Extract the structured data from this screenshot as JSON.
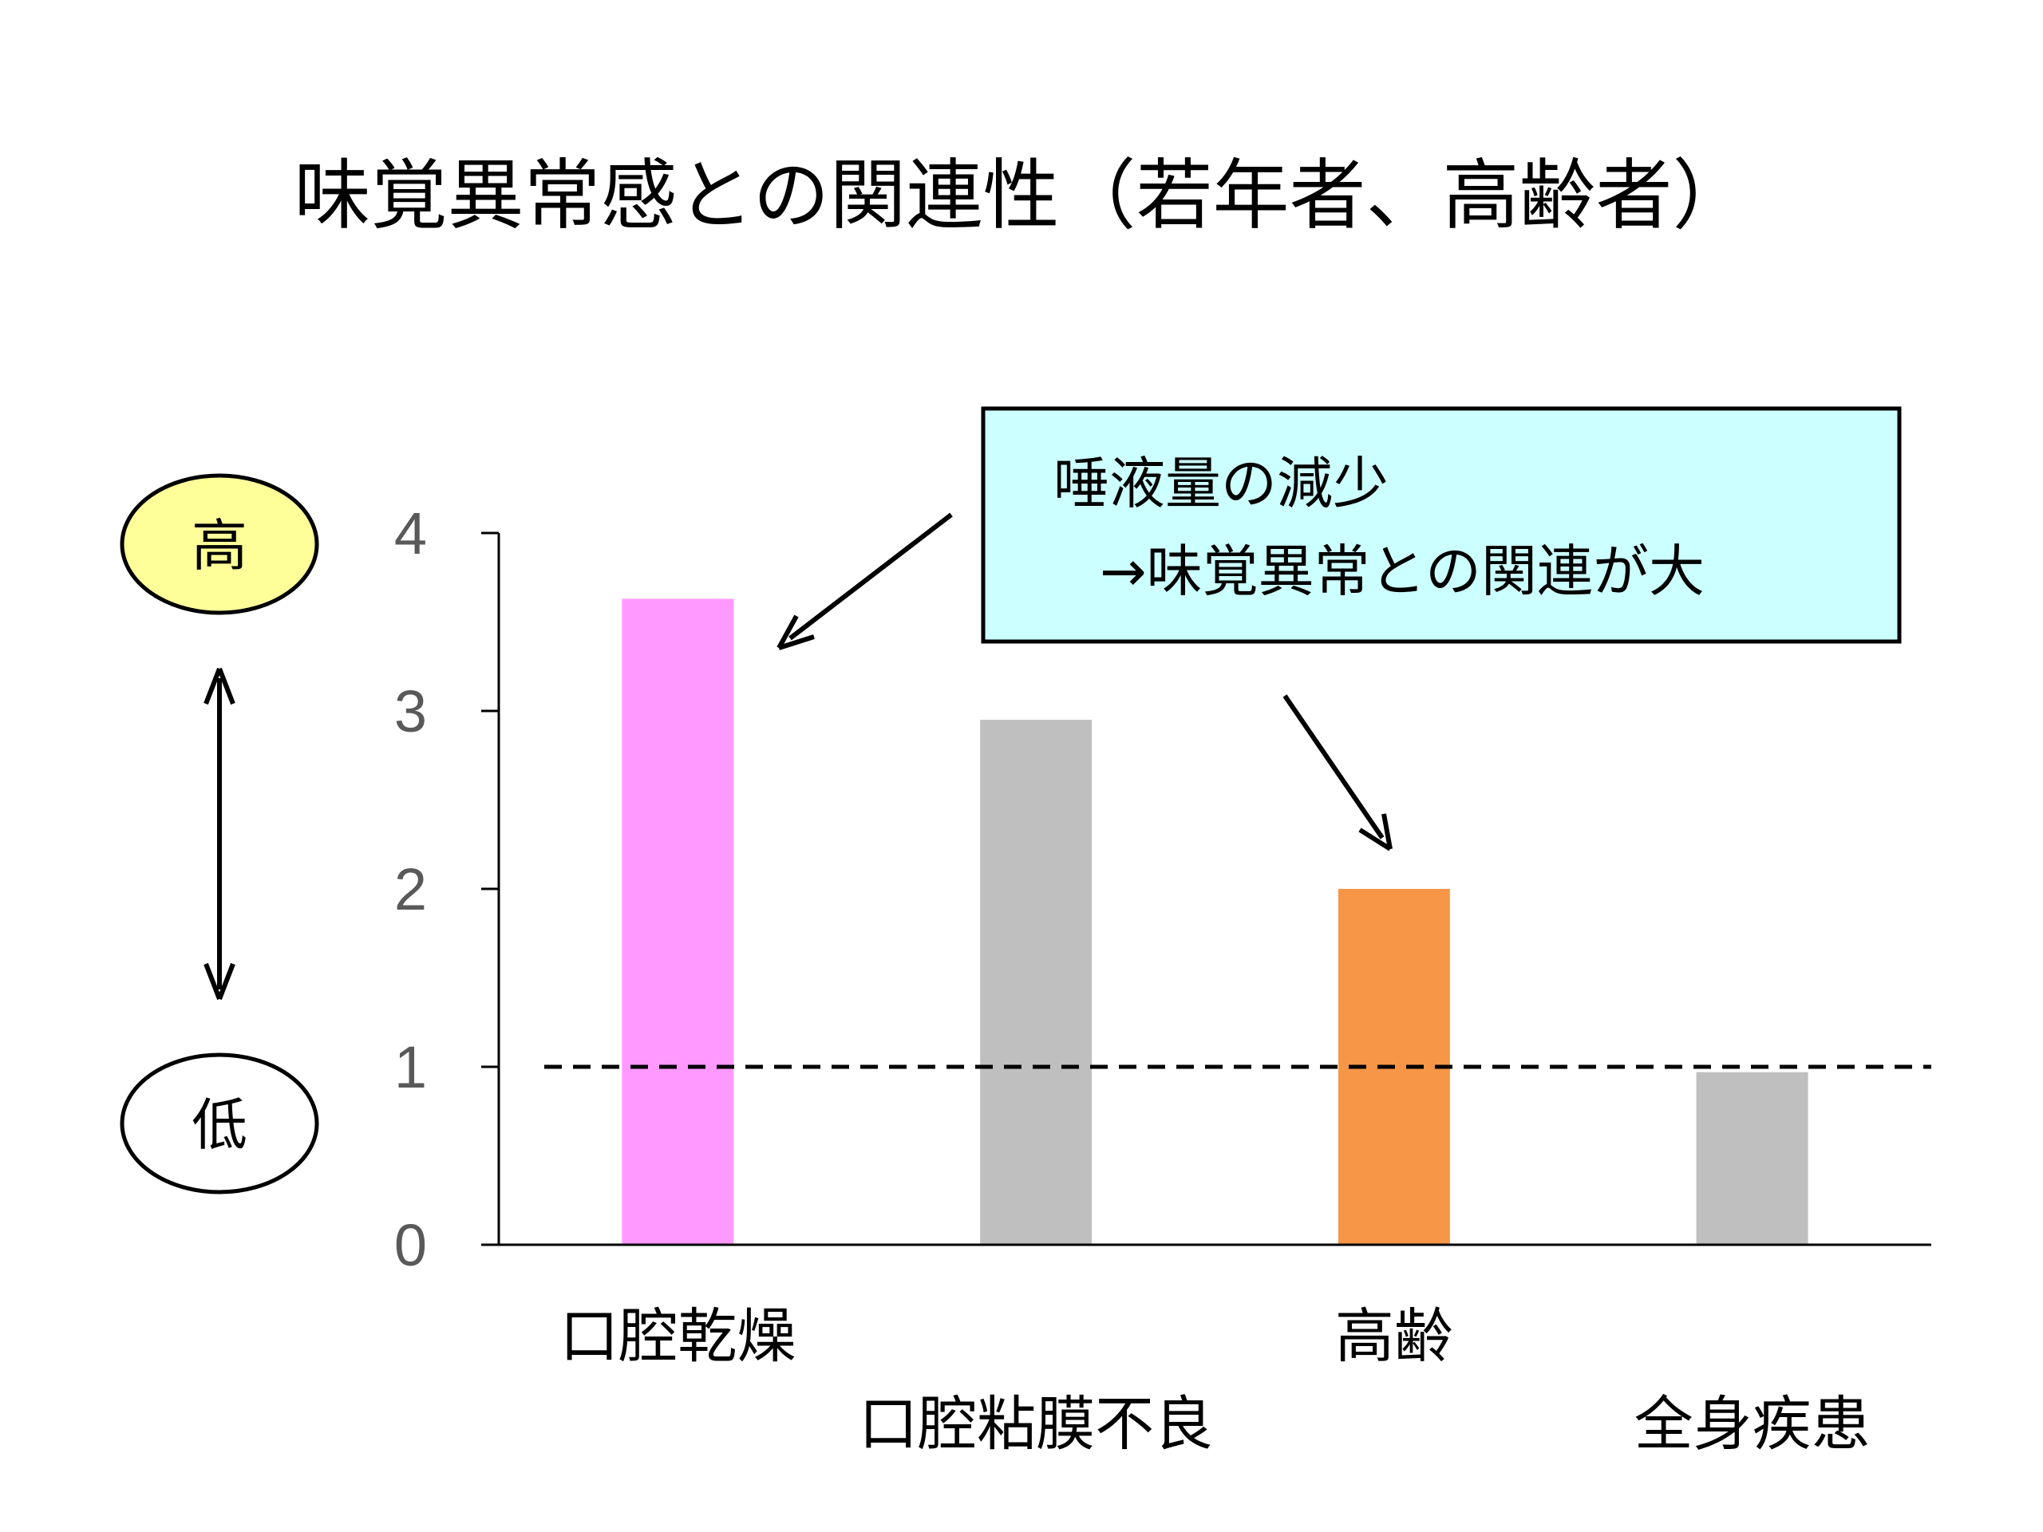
{
  "title": "味覚異常感との関連性（若年者、高齢者）",
  "scale_indicator": {
    "high_label": "高",
    "low_label": "低",
    "high_fill": "#FFFF99",
    "low_fill": "#FFFFFF"
  },
  "callout": {
    "line1": "唾液量の減少",
    "line2": "→味覚異常との関連が大",
    "fill": "#CCFFFF"
  },
  "chart_data": {
    "type": "bar",
    "title": "",
    "xlabel": "",
    "ylabel": "",
    "categories": [
      "口腔乾燥",
      "口腔粘膜不良",
      "高齢",
      "全身疾患"
    ],
    "values": [
      3.63,
      2.95,
      2.0,
      0.97
    ],
    "colors": [
      "#FF99FF",
      "#BFBFBF",
      "#F79646",
      "#BFBFBF"
    ],
    "ylim": [
      0,
      4
    ],
    "yticks": [
      "0",
      "1",
      "2",
      "3",
      "4"
    ],
    "reference_line": {
      "y": 1,
      "style": "dashed"
    },
    "grid": false,
    "legend": "none"
  }
}
